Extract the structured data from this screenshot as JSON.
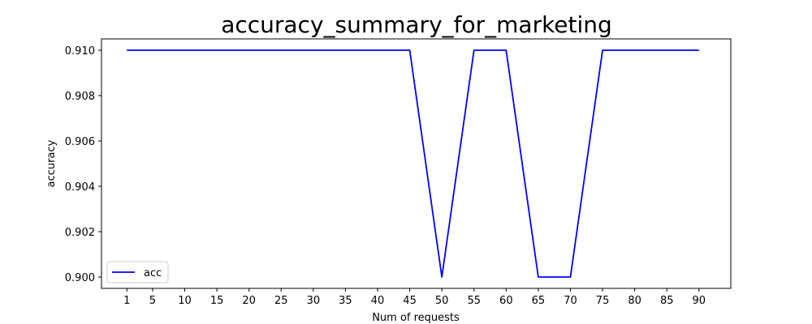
{
  "chart_data": {
    "type": "line",
    "title": "accuracy_summary_for_marketing",
    "xlabel": "Num of requests",
    "ylabel": "accuracy",
    "x_ticks": [
      1,
      5,
      10,
      15,
      20,
      25,
      30,
      35,
      40,
      45,
      50,
      55,
      60,
      65,
      70,
      75,
      80,
      85,
      90
    ],
    "y_ticks": [
      "0.900",
      "0.902",
      "0.904",
      "0.906",
      "0.908",
      "0.910"
    ],
    "xlim": [
      -2.95,
      94.95
    ],
    "ylim": [
      0.8995,
      0.9105
    ],
    "grid": false,
    "legend_position": "lower-left",
    "series": [
      {
        "name": "acc",
        "color": "#0000ff",
        "x": [
          1,
          5,
          10,
          15,
          20,
          25,
          30,
          35,
          40,
          45,
          50,
          55,
          60,
          65,
          70,
          75,
          80,
          85,
          90
        ],
        "y": [
          0.91,
          0.91,
          0.91,
          0.91,
          0.91,
          0.91,
          0.91,
          0.91,
          0.91,
          0.91,
          0.9,
          0.91,
          0.91,
          0.9,
          0.9,
          0.91,
          0.91,
          0.91,
          0.91
        ]
      }
    ]
  }
}
